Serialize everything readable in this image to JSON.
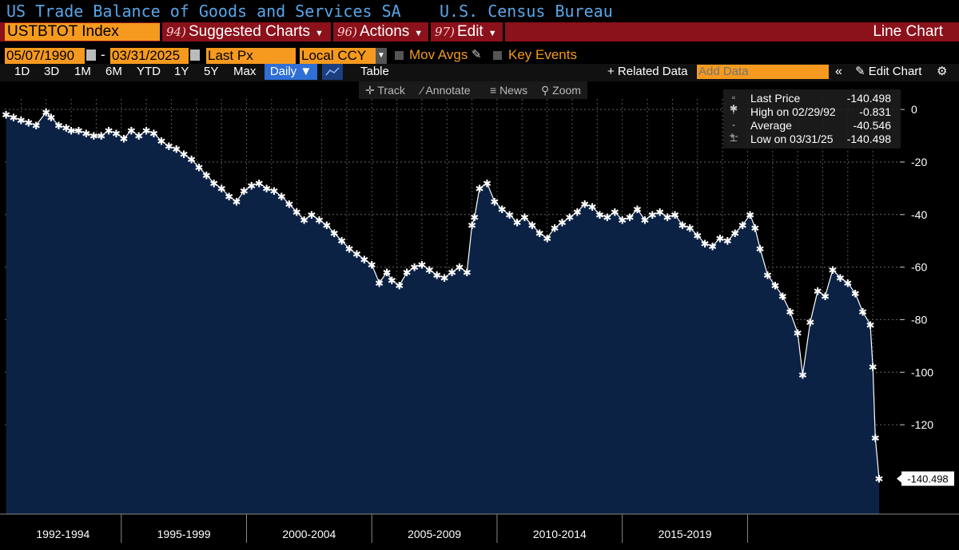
{
  "header": {
    "title": "US Trade Balance of Goods and Services SA",
    "source": "U.S. Census Bureau"
  },
  "menu": {
    "ticker": "USTBTOT Index",
    "items": [
      {
        "num": "94)",
        "label": "Suggested Charts"
      },
      {
        "num": "96)",
        "label": "Actions"
      },
      {
        "num": "97)",
        "label": "Edit"
      }
    ],
    "chart_type": "Line Chart"
  },
  "controls": {
    "start_date": "05/07/1990",
    "end_date": "03/31/2025",
    "field": "Last Px",
    "currency": "Local CCY",
    "mov_avgs": "Mov Avgs",
    "key_events": "Key Events"
  },
  "ranges": {
    "buttons": [
      "1D",
      "3D",
      "1M",
      "6M",
      "YTD",
      "1Y",
      "5Y",
      "Max"
    ],
    "frequency": "Daily ▼",
    "table": "Table",
    "related": "+ Related Data",
    "add_data_placeholder": "Add Data",
    "edit_chart": "Edit Chart"
  },
  "tools": {
    "track": "Track",
    "annotate": "Annotate",
    "news": "News",
    "zoom": "Zoom"
  },
  "legend": {
    "last": {
      "label": "Last Price",
      "value": "-140.498"
    },
    "high": {
      "label": "High on 02/29/92",
      "value": "-0.831"
    },
    "average": {
      "label": "Average",
      "value": "-40.546"
    },
    "low": {
      "label": "Low on 03/31/25",
      "value": "-140.498"
    }
  },
  "colors": {
    "background": "#000000",
    "area_fill": "#0c2244",
    "line": "#ffffff",
    "accent": "#f59a1e",
    "menu_bar": "#8b111b",
    "title": "#5aa5e8"
  },
  "chart_data": {
    "type": "area",
    "title": "US Trade Balance of Goods and Services SA",
    "x_labels": [
      "1992-1994",
      "1995-1999",
      "2000-2004",
      "2005-2009",
      "2010-2014",
      "2015-2019"
    ],
    "y_ticks": [
      0,
      -20,
      -40,
      -60,
      -80,
      -100,
      -120
    ],
    "ylim": [
      -154,
      4
    ],
    "last_value_label": "-140.498",
    "grid": true,
    "legend_position": "top-right",
    "series": [
      {
        "x": [
          1990.4,
          1990.7,
          1991.0,
          1991.3,
          1991.6,
          1992.0,
          1992.2,
          1992.5,
          1992.8,
          1993.0,
          1993.3,
          1993.6,
          1993.9,
          1994.2,
          1994.5,
          1994.8,
          1995.1,
          1995.4,
          1995.7,
          1996.0,
          1996.3,
          1996.6,
          1996.9,
          1997.2,
          1997.5,
          1997.8,
          1998.1,
          1998.4,
          1998.7,
          1999.0,
          1999.3,
          1999.6,
          1999.9,
          2000.2,
          2000.5,
          2000.8,
          2001.1,
          2001.4,
          2001.7,
          2002.0,
          2002.3,
          2002.6,
          2002.9,
          2003.2,
          2003.5,
          2003.8,
          2004.1,
          2004.4,
          2004.7,
          2005.0,
          2005.3,
          2005.6,
          2005.8,
          2006.1,
          2006.4,
          2006.7,
          2007.0,
          2007.3,
          2007.6,
          2007.9,
          2008.2,
          2008.5,
          2008.8,
          2009.0,
          2009.1,
          2009.3,
          2009.6,
          2009.9,
          2010.2,
          2010.5,
          2010.8,
          2011.1,
          2011.4,
          2011.7,
          2012.0,
          2012.3,
          2012.6,
          2012.9,
          2013.2,
          2013.5,
          2013.8,
          2014.1,
          2014.4,
          2014.7,
          2015.0,
          2015.3,
          2015.6,
          2015.9,
          2016.2,
          2016.5,
          2016.8,
          2017.1,
          2017.4,
          2017.7,
          2018.0,
          2018.3,
          2018.6,
          2018.9,
          2019.2,
          2019.5,
          2019.8,
          2020.1,
          2020.3,
          2020.5,
          2020.8,
          2021.1,
          2021.4,
          2021.7,
          2022.0,
          2022.2,
          2022.5,
          2022.8,
          2023.1,
          2023.4,
          2023.7,
          2024.0,
          2024.3,
          2024.6,
          2024.9,
          2025.0,
          2025.1,
          2025.25
        ],
        "values": [
          -2,
          -3,
          -4,
          -5,
          -6,
          -1,
          -3,
          -6,
          -7,
          -8,
          -8,
          -9,
          -10,
          -10,
          -8,
          -9,
          -11,
          -8,
          -10,
          -8,
          -9,
          -12,
          -14,
          -15,
          -17,
          -19,
          -22,
          -25,
          -28,
          -30,
          -33,
          -35,
          -31,
          -29,
          -28,
          -30,
          -31,
          -33,
          -36,
          -39,
          -42,
          -40,
          -42,
          -44,
          -47,
          -50,
          -53,
          -55,
          -57,
          -59,
          -66,
          -62,
          -65,
          -67,
          -62,
          -60,
          -59,
          -61,
          -63,
          -64,
          -62,
          -60,
          -62,
          -44,
          -41,
          -30,
          -28,
          -35,
          -38,
          -40,
          -43,
          -41,
          -44,
          -47,
          -49,
          -45,
          -43,
          -41,
          -39,
          -36,
          -37,
          -40,
          -41,
          -39,
          -42,
          -41,
          -38,
          -42,
          -40,
          -39,
          -41,
          -40,
          -44,
          -45,
          -48,
          -51,
          -52,
          -49,
          -50,
          -47,
          -44,
          -40,
          -45,
          -53,
          -63,
          -67,
          -71,
          -77,
          -85,
          -101,
          -81,
          -69,
          -71,
          -61,
          -64,
          -66,
          -70,
          -77,
          -82,
          -98,
          -125,
          -140.498
        ]
      }
    ]
  }
}
